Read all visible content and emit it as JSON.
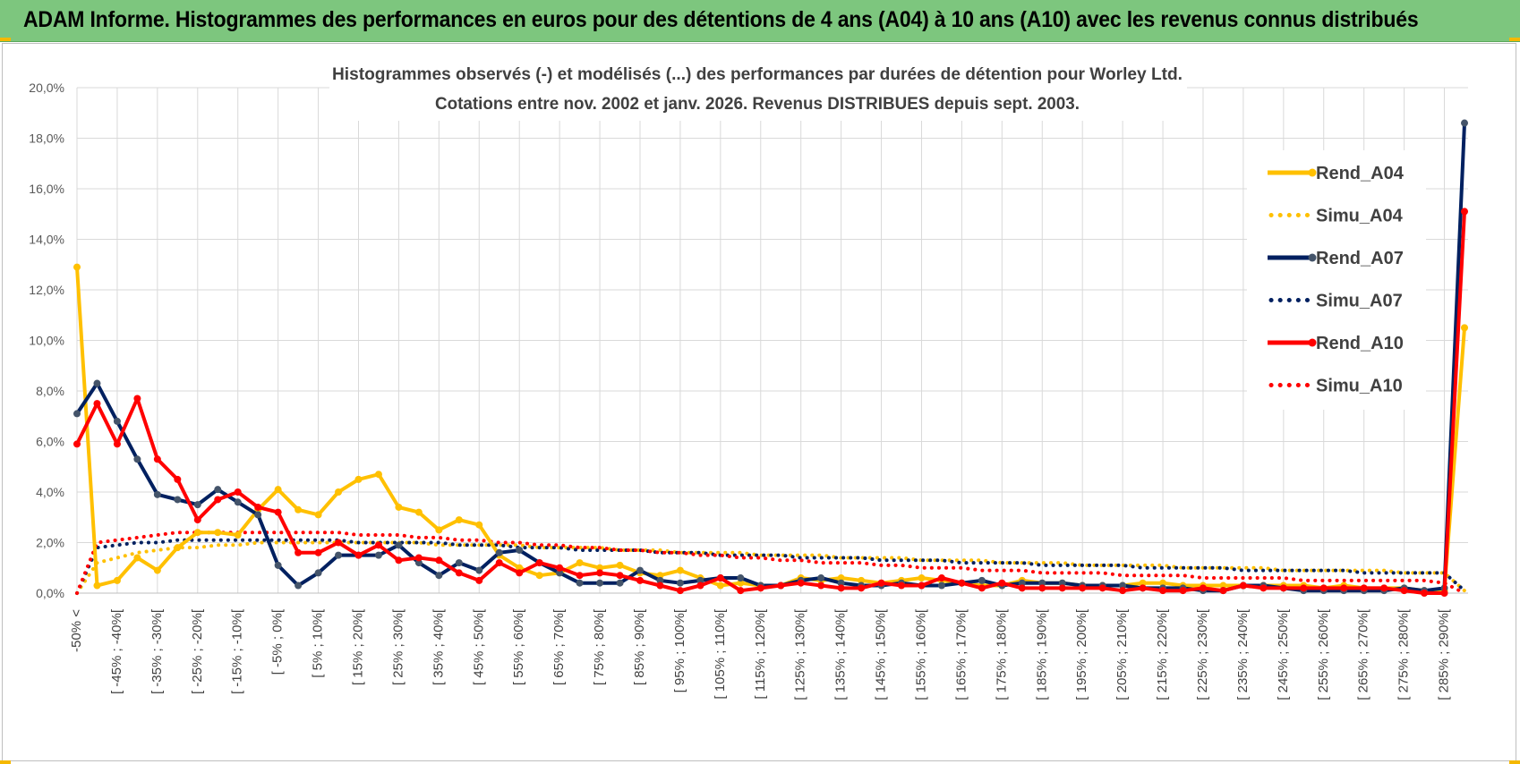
{
  "banner": {
    "title": "ADAM Informe. Histogrammes des performances en euros pour des détentions de 4 ans (A04) à 10 ans (A10) avec les revenus connus distribués"
  },
  "colors": {
    "banner_bg": "#7dc67e",
    "a04": "#ffc000",
    "a07": "#002060",
    "a10": "#ff0000",
    "marker_a07": "#44546a"
  },
  "chart_data": {
    "type": "line",
    "title": "Histogrammes observés (-) et modélisés (...) des performances par durées de détention pour Worley Ltd.",
    "subtitle": "Cotations entre nov. 2002 et janv. 2026. Revenus DISTRIBUES depuis sept. 2003.",
    "xlabel": "",
    "ylabel": "",
    "ylim": [
      0,
      20
    ],
    "yticks": [
      "0,0%",
      "2,0%",
      "4,0%",
      "6,0%",
      "8,0%",
      "10,0%",
      "12,0%",
      "14,0%",
      "16,0%",
      "18,0%",
      "20,0%"
    ],
    "grid": true,
    "legend_position": "top-right",
    "x_tick_labels": [
      "-50% <",
      "[ -45% ; -40%[",
      "[ -35% ; -30%[",
      "[ -25% ; -20%[",
      "[ -15% ; -10%[",
      "[ -5% ; 0%[",
      "[ 5% ; 10%[",
      "[ 15% ; 20%[",
      "[ 25% ; 30%[",
      "[ 35% ; 40%[",
      "[ 45% ; 50%[",
      "[ 55% ; 60%[",
      "[ 65% ; 70%[",
      "[ 75% ; 80%[",
      "[ 85% ; 90%[",
      "[ 95% ; 100%[",
      "[ 105% ; 110%[",
      "[ 115% ; 120%[",
      "[ 125% ; 130%[",
      "[ 135% ; 140%[",
      "[ 145% ; 150%[",
      "[ 155% ; 160%[",
      "[ 165% ; 170%[",
      "[ 175% ; 180%[",
      "[ 185% ; 190%[",
      "[ 195% ; 200%[",
      "[ 205% ; 210%[",
      "[ 215% ; 220%[",
      "[ 225% ; 230%[",
      "[ 235% ; 240%[",
      "[ 245% ; 250%[",
      "[ 255% ; 260%[",
      "[ 265% ; 270%[",
      "[ 275% ; 280%[",
      "[ 285% ; 290%["
    ],
    "n_categories": 70,
    "series": [
      {
        "name": "Rend_A04",
        "style": "solid",
        "color": "#ffc000",
        "values": [
          12.9,
          0.3,
          0.5,
          1.4,
          0.9,
          1.8,
          2.4,
          2.4,
          2.3,
          3.3,
          4.1,
          3.3,
          3.1,
          4.0,
          4.5,
          4.7,
          3.4,
          3.2,
          2.5,
          2.9,
          2.7,
          1.5,
          1.0,
          0.7,
          0.8,
          1.2,
          1.0,
          1.1,
          0.8,
          0.7,
          0.9,
          0.6,
          0.3,
          0.4,
          0.3,
          0.3,
          0.6,
          0.5,
          0.6,
          0.5,
          0.4,
          0.5,
          0.6,
          0.5,
          0.4,
          0.3,
          0.3,
          0.5,
          0.4,
          0.4,
          0.3,
          0.3,
          0.3,
          0.4,
          0.4,
          0.3,
          0.3,
          0.3,
          0.3,
          0.3,
          0.3,
          0.3,
          0.2,
          0.3,
          0.2,
          0.2,
          0.2,
          0.1,
          0.1,
          10.5
        ]
      },
      {
        "name": "Simu_A04",
        "style": "dotted",
        "color": "#ffc000",
        "values": [
          0.0,
          1.2,
          1.4,
          1.6,
          1.7,
          1.8,
          1.8,
          1.9,
          1.9,
          2.0,
          2.0,
          2.0,
          2.0,
          2.0,
          2.0,
          2.0,
          2.0,
          2.0,
          1.9,
          1.9,
          1.9,
          1.9,
          1.9,
          1.8,
          1.8,
          1.8,
          1.8,
          1.7,
          1.7,
          1.7,
          1.6,
          1.6,
          1.6,
          1.6,
          1.5,
          1.5,
          1.5,
          1.5,
          1.4,
          1.4,
          1.4,
          1.4,
          1.3,
          1.3,
          1.3,
          1.3,
          1.2,
          1.2,
          1.2,
          1.2,
          1.1,
          1.1,
          1.1,
          1.1,
          1.1,
          1.0,
          1.0,
          1.0,
          1.0,
          1.0,
          0.9,
          0.9,
          0.9,
          0.9,
          0.9,
          0.9,
          0.8,
          0.8,
          0.8,
          0.1
        ]
      },
      {
        "name": "Rend_A07",
        "style": "solid",
        "color": "#002060",
        "values": [
          7.1,
          8.3,
          6.8,
          5.3,
          3.9,
          3.7,
          3.5,
          4.1,
          3.6,
          3.1,
          1.1,
          0.3,
          0.8,
          1.5,
          1.5,
          1.5,
          1.9,
          1.2,
          0.7,
          1.2,
          0.9,
          1.6,
          1.7,
          1.2,
          0.8,
          0.4,
          0.4,
          0.4,
          0.9,
          0.5,
          0.4,
          0.5,
          0.6,
          0.6,
          0.3,
          0.3,
          0.5,
          0.6,
          0.4,
          0.3,
          0.3,
          0.4,
          0.3,
          0.3,
          0.4,
          0.5,
          0.3,
          0.4,
          0.4,
          0.4,
          0.3,
          0.3,
          0.3,
          0.2,
          0.2,
          0.2,
          0.1,
          0.1,
          0.3,
          0.3,
          0.2,
          0.1,
          0.1,
          0.1,
          0.1,
          0.1,
          0.2,
          0.1,
          0.2,
          18.6
        ]
      },
      {
        "name": "Simu_A07",
        "style": "dotted",
        "color": "#002060",
        "values": [
          0.0,
          1.8,
          1.9,
          2.0,
          2.0,
          2.1,
          2.1,
          2.1,
          2.1,
          2.1,
          2.1,
          2.1,
          2.1,
          2.1,
          2.0,
          2.0,
          2.0,
          2.0,
          2.0,
          1.9,
          1.9,
          1.9,
          1.8,
          1.8,
          1.8,
          1.7,
          1.7,
          1.7,
          1.7,
          1.6,
          1.6,
          1.6,
          1.5,
          1.5,
          1.5,
          1.5,
          1.4,
          1.4,
          1.4,
          1.4,
          1.3,
          1.3,
          1.3,
          1.3,
          1.2,
          1.2,
          1.2,
          1.2,
          1.1,
          1.1,
          1.1,
          1.1,
          1.1,
          1.0,
          1.0,
          1.0,
          1.0,
          1.0,
          0.9,
          0.9,
          0.9,
          0.9,
          0.9,
          0.9,
          0.8,
          0.8,
          0.8,
          0.8,
          0.8,
          0.1
        ]
      },
      {
        "name": "Rend_A10",
        "style": "solid",
        "color": "#ff0000",
        "values": [
          5.9,
          7.5,
          5.9,
          7.7,
          5.3,
          4.5,
          2.9,
          3.7,
          4.0,
          3.4,
          3.2,
          1.6,
          1.6,
          2.0,
          1.5,
          1.9,
          1.3,
          1.4,
          1.3,
          0.8,
          0.5,
          1.2,
          0.8,
          1.2,
          1.0,
          0.7,
          0.8,
          0.7,
          0.5,
          0.3,
          0.1,
          0.3,
          0.6,
          0.1,
          0.2,
          0.3,
          0.4,
          0.3,
          0.2,
          0.2,
          0.4,
          0.3,
          0.3,
          0.6,
          0.4,
          0.2,
          0.4,
          0.2,
          0.2,
          0.2,
          0.2,
          0.2,
          0.1,
          0.2,
          0.1,
          0.1,
          0.2,
          0.1,
          0.3,
          0.2,
          0.2,
          0.2,
          0.2,
          0.2,
          0.2,
          0.2,
          0.1,
          0.0,
          0.0,
          15.1
        ]
      },
      {
        "name": "Simu_A10",
        "style": "dotted",
        "color": "#ff0000",
        "values": [
          0.0,
          2.0,
          2.1,
          2.2,
          2.3,
          2.4,
          2.4,
          2.4,
          2.4,
          2.4,
          2.4,
          2.4,
          2.4,
          2.4,
          2.3,
          2.3,
          2.3,
          2.2,
          2.2,
          2.1,
          2.1,
          2.0,
          2.0,
          1.9,
          1.9,
          1.8,
          1.8,
          1.7,
          1.7,
          1.6,
          1.6,
          1.5,
          1.5,
          1.4,
          1.4,
          1.3,
          1.3,
          1.2,
          1.2,
          1.2,
          1.1,
          1.1,
          1.0,
          1.0,
          1.0,
          0.9,
          0.9,
          0.9,
          0.8,
          0.8,
          0.8,
          0.8,
          0.7,
          0.7,
          0.7,
          0.7,
          0.6,
          0.6,
          0.6,
          0.6,
          0.6,
          0.5,
          0.5,
          0.5,
          0.5,
          0.5,
          0.5,
          0.5,
          0.4,
          0.0
        ]
      }
    ]
  }
}
